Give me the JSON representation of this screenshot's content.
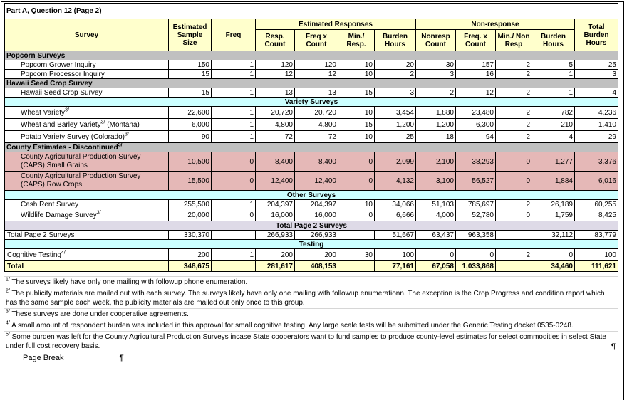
{
  "title": "Part A, Question 12 (Page 2)",
  "colors": {
    "header_bg": "#FFFFCC",
    "section_gray": "#C0C0C0",
    "section_cyan": "#CCFFFF",
    "section_lavender": "#DEDAE7",
    "discontinued_pink": "#E5B8B7",
    "total_bg": "#FFFFCC",
    "border": "#000000"
  },
  "table": {
    "header": {
      "survey": "Survey",
      "sample_size": "Estimated Sample Size",
      "freq": "Freq",
      "est_responses": "Estimated Responses",
      "non_response": "Non-response",
      "resp_count": "Resp. Count",
      "freq_x_count": "Freq x Count",
      "min_resp": "Min./ Resp.",
      "burden_hours": "Burden Hours",
      "nonresp_count": "Nonresp Count",
      "freq_x_count2": "Freq. x Count",
      "min_non_resp": "Min./ Non Resp",
      "burden_hours2": "Burden Hours",
      "total_burden": "Total Burden Hours"
    },
    "rows": [
      {
        "type": "section",
        "style": "gray",
        "label": "Popcorn Surveys"
      },
      {
        "type": "data",
        "indent": true,
        "name": "Popcorn Grower Inquiry",
        "values": [
          "150",
          "1",
          "120",
          "120",
          "10",
          "20",
          "30",
          "157",
          "2",
          "5",
          "25"
        ]
      },
      {
        "type": "data",
        "indent": true,
        "name": "Popcorn Processor Inquiry",
        "values": [
          "15",
          "1",
          "12",
          "12",
          "10",
          "2",
          "3",
          "16",
          "2",
          "1",
          "3"
        ]
      },
      {
        "type": "section",
        "style": "gray",
        "label": "Hawaii Seed Crop Survey"
      },
      {
        "type": "data",
        "indent": true,
        "name": "Hawaii Seed Crop Survey",
        "values": [
          "15",
          "1",
          "13",
          "13",
          "15",
          "3",
          "2",
          "12",
          "2",
          "1",
          "4"
        ]
      },
      {
        "type": "section",
        "style": "cyan",
        "center": true,
        "label": "Variety Surveys"
      },
      {
        "type": "data",
        "indent": true,
        "name": "Wheat Variety",
        "sup": "3/",
        "suffix": "",
        "values": [
          "22,600",
          "1",
          "20,720",
          "20,720",
          "10",
          "3,454",
          "1,880",
          "23,480",
          "2",
          "782",
          "4,236"
        ]
      },
      {
        "type": "data",
        "indent": true,
        "name": "Wheat and Barley Variety",
        "sup": "3/",
        "suffix": " (Montana)",
        "values": [
          "6,000",
          "1",
          "4,800",
          "4,800",
          "15",
          "1,200",
          "1,200",
          "6,300",
          "2",
          "210",
          "1,410"
        ]
      },
      {
        "type": "data",
        "indent": true,
        "name": "Potato Variety Survey (Colorado)",
        "sup": "3/",
        "suffix": "",
        "values": [
          "90",
          "1",
          "72",
          "72",
          "10",
          "25",
          "18",
          "94",
          "2",
          "4",
          "29"
        ]
      },
      {
        "type": "section",
        "style": "gray",
        "label": "County Estimates - Discontinued",
        "sup": "5/"
      },
      {
        "type": "data",
        "indent": true,
        "pink": true,
        "name": "County Agricultural Production Survey (CAPS) Small Grains",
        "values": [
          "10,500",
          "0",
          "8,400",
          "8,400",
          "0",
          "2,099",
          "2,100",
          "38,293",
          "0",
          "1,277",
          "3,376"
        ]
      },
      {
        "type": "data",
        "indent": true,
        "pink": true,
        "name": "County Agricultural Production Survey (CAPS) Row Crops",
        "values": [
          "15,500",
          "0",
          "12,400",
          "12,400",
          "0",
          "4,132",
          "3,100",
          "56,527",
          "0",
          "1,884",
          "6,016"
        ]
      },
      {
        "type": "section",
        "style": "cyan",
        "center": true,
        "label": "Other Surveys"
      },
      {
        "type": "data",
        "indent": true,
        "name": "Cash Rent Survey",
        "values": [
          "255,500",
          "1",
          "204,397",
          "204,397",
          "10",
          "34,066",
          "51,103",
          "785,697",
          "2",
          "26,189",
          "60,255"
        ]
      },
      {
        "type": "data",
        "indent": true,
        "name": "Wildlife Damage Survey",
        "sup": "3/",
        "suffix": "",
        "values": [
          "20,000",
          "0",
          "16,000",
          "16,000",
          "0",
          "6,666",
          "4,000",
          "52,780",
          "0",
          "1,759",
          "8,425"
        ]
      },
      {
        "type": "section",
        "style": "lavender",
        "center": true,
        "label": "Total Page 2 Surveys"
      },
      {
        "type": "data",
        "indent": false,
        "name": "Total Page 2 Surveys",
        "values": [
          "330,370",
          "",
          "266,933",
          "266,933",
          "",
          "51,667",
          "63,437",
          "963,358",
          "",
          "32,112",
          "83,779"
        ]
      },
      {
        "type": "section",
        "style": "cyan",
        "center": true,
        "label": "Testing"
      },
      {
        "type": "data",
        "indent": false,
        "name": "Cognitive Testing",
        "sup": "4/",
        "suffix": "",
        "values": [
          "200",
          "1",
          "200",
          "200",
          "30",
          "100",
          "0",
          "0",
          "2",
          "0",
          "100"
        ]
      },
      {
        "type": "total",
        "indent": false,
        "name": "Total",
        "values": [
          "348,675",
          "",
          "281,617",
          "408,153",
          "",
          "77,161",
          "67,058",
          "1,033,868",
          "",
          "34,460",
          "111,621"
        ]
      }
    ]
  },
  "footnotes": [
    {
      "mark": "1/",
      "text": "The surveys likely have only one mailing with followup phone enumeration."
    },
    {
      "mark": "2/",
      "text": "The publicity materials are mailed out with each survey.  The surveys likely have only one mailing with followup enumerationn.  The exception is the Crop Progress and condition report which has the same sample each week, the publicity materials are mailed out only once to this group."
    },
    {
      "mark": "3/",
      "text": "These surveys are done under cooperative agreements."
    },
    {
      "mark": "4/",
      "text": "A small amount of respondent burden was included in this approval for small cognitive testing.  Any large scale tests will be submitted under the Generic Testing docket 0535-0248."
    },
    {
      "mark": "5/",
      "text": "Some burden was left for the County Agricultural Production Surveys incase State cooperators want to fund samples to produce county-level estimates for select commodities in select State under full cost recovery basis."
    }
  ],
  "page_break_label": "Page Break",
  "pilcrow": "¶"
}
